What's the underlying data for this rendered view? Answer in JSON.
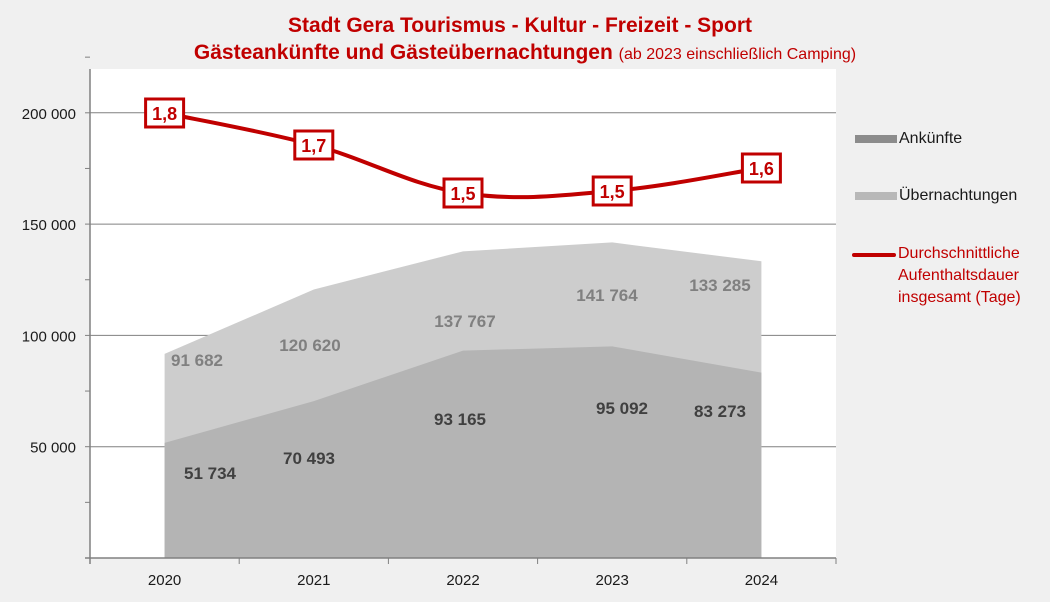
{
  "title": {
    "line1": "Stadt Gera Tourismus - Kultur - Freizeit - Sport",
    "line2": "Gästeankünfte und Gästeübernachtungen",
    "line2_note": "(ab 2023 einschließlich Camping)"
  },
  "legend": {
    "arrivals": "Ankünfte",
    "overnights": "Übernachtungen",
    "duration_line1": "Durchschnittliche",
    "duration_line2": "Aufenthaltsdauer",
    "duration_line3": "insgesamt (Tage)"
  },
  "colors": {
    "accent": "#c00000",
    "arrivals_fill": "#b4b4b4",
    "overnights_fill": "#cdcdcd",
    "arrivals_label": "#404040",
    "overnights_label": "#808080",
    "grid": "#808080",
    "plot_bg": "#ffffff",
    "page_bg": "#f0f0f0"
  },
  "chart_data": {
    "type": "area",
    "title": "Stadt Gera Tourismus - Kultur - Freizeit - Sport — Gästeankünfte und Gästeübernachtungen (ab 2023 einschließlich Camping)",
    "categories": [
      "2020",
      "2021",
      "2022",
      "2023",
      "2024"
    ],
    "series": [
      {
        "name": "Ankünfte",
        "type": "area",
        "values": [
          51734,
          70493,
          93165,
          95092,
          83273
        ],
        "labels": [
          "51 734",
          "70 493",
          "93 165",
          "95 092",
          "83 273"
        ]
      },
      {
        "name": "Übernachtungen",
        "type": "area",
        "values": [
          91682,
          120620,
          137767,
          141764,
          133285
        ],
        "labels": [
          "91 682",
          "120 620",
          "137 767",
          "141 764",
          "133 285"
        ]
      },
      {
        "name": "Durchschnittliche Aufenthaltsdauer insgesamt (Tage)",
        "type": "line",
        "values": [
          1.8,
          1.7,
          1.5,
          1.5,
          1.6
        ],
        "labels": [
          "1,8",
          "1,7",
          "1,5",
          "1,5",
          "1,6"
        ]
      }
    ],
    "yticks": [
      "50 000",
      "100 000",
      "150 000",
      "200 000"
    ],
    "ylim": [
      0,
      220000
    ],
    "xlabel": "",
    "ylabel": "",
    "grid": true,
    "legend_position": "right"
  }
}
